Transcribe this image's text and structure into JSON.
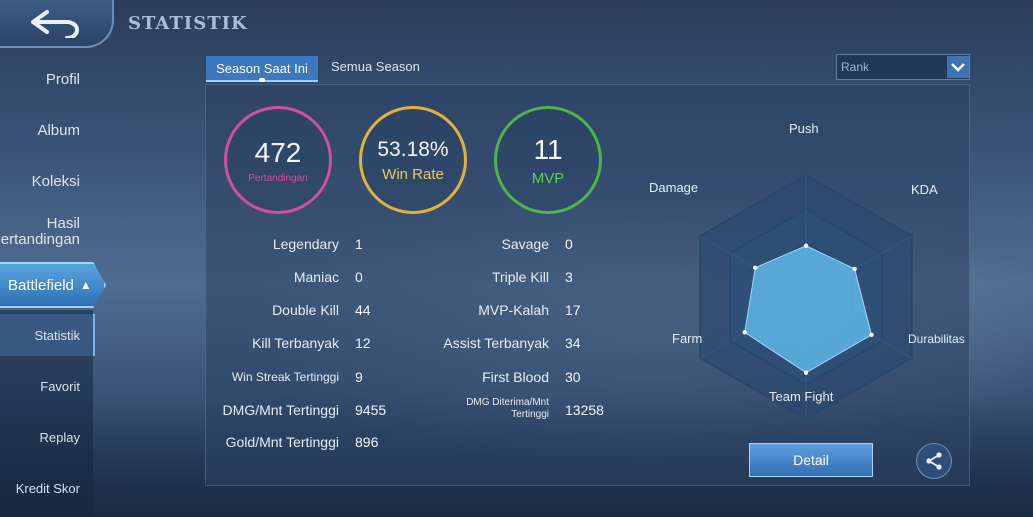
{
  "header": {
    "title": "STATISTIK"
  },
  "sidebar": {
    "items": [
      {
        "label": "Profil"
      },
      {
        "label": "Album"
      },
      {
        "label": "Koleksi"
      },
      {
        "label_line1": "Hasil",
        "label_line2": "ertandingan"
      }
    ],
    "section": {
      "label": "Battlefield"
    },
    "sub_items": [
      {
        "label": "Statistik"
      },
      {
        "label": "Favorit"
      },
      {
        "label": "Replay"
      },
      {
        "label": "Kredit Skor"
      }
    ]
  },
  "tabs": [
    {
      "label": "Season Saat Ini",
      "active": true
    },
    {
      "label": "Semua Season",
      "active": false
    }
  ],
  "mode_select": {
    "value": "Rank"
  },
  "summary": [
    {
      "value": "472",
      "label": "Pertandingan",
      "color": "#d04ea6"
    },
    {
      "value": "53.18%",
      "label": "Win Rate",
      "color": "#e0b23c"
    },
    {
      "value": "11",
      "label": "MVP",
      "color": "#4fb24a"
    }
  ],
  "stats_left": [
    {
      "label": "Legendary",
      "value": "1"
    },
    {
      "label": "Maniac",
      "value": "0"
    },
    {
      "label": "Double Kill",
      "value": "44"
    },
    {
      "label": "Kill Terbanyak",
      "value": "12"
    },
    {
      "label": "Win Streak Tertinggi",
      "value": "9"
    },
    {
      "label": "DMG/Mnt Tertinggi",
      "value": "9455"
    },
    {
      "label": "Gold/Mnt Tertinggi",
      "value": "896"
    }
  ],
  "stats_right": [
    {
      "label": "Savage",
      "value": "0"
    },
    {
      "label": "Triple Kill",
      "value": "3"
    },
    {
      "label": "MVP-Kalah",
      "value": "17"
    },
    {
      "label": "Assist Terbanyak",
      "value": "34"
    },
    {
      "label": "First Blood",
      "value": "30"
    },
    {
      "label_line1": "DMG Diterima/Mnt",
      "label_line2": "Tertinggi",
      "value": "13258"
    }
  ],
  "radar": {
    "axes": [
      "Push",
      "KDA",
      "Durabilitas",
      "Team Fight",
      "Farm",
      "Damage"
    ],
    "values": [
      0.42,
      0.46,
      0.62,
      0.62,
      0.58,
      0.48
    ],
    "fill_color": "#5fb6e6"
  },
  "buttons": {
    "detail": "Detail"
  }
}
